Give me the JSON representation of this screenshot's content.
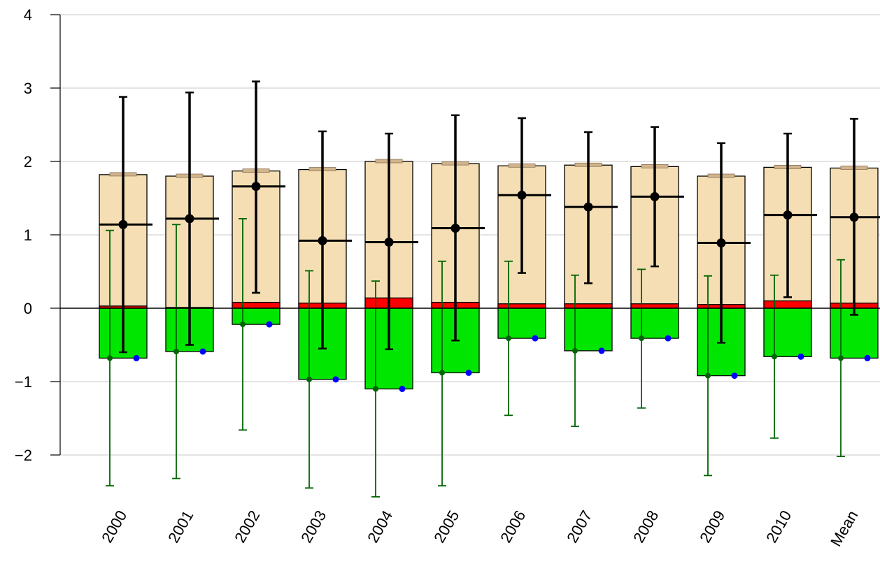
{
  "chart_data": {
    "type": "bar",
    "title": "",
    "xlabel": "",
    "ylabel": "",
    "ylim": [
      -2.75,
      4
    ],
    "grid": true,
    "yticks": [
      -2,
      -1,
      0,
      1,
      2,
      3,
      4
    ],
    "ytick_labels": [
      "−2",
      "−1",
      "0",
      "1",
      "2",
      "3",
      "4"
    ],
    "categories": [
      "2000",
      "2001",
      "2002",
      "2003",
      "2004",
      "2005",
      "2006",
      "2007",
      "2008",
      "2009",
      "2010",
      "Mean"
    ],
    "colors": {
      "positive_bar": "#f5deb3",
      "positive_cap": "#d2b48c",
      "small_bar": "#ff0000",
      "negative_bar": "#00e600",
      "positive_errorbar": "#000000",
      "negative_errorbar": "#006400",
      "point": "#0000ff",
      "grid": "#d3d3d3"
    },
    "series": [
      {
        "values": [
          1.82,
          1.8,
          1.87,
          1.89,
          2.0,
          1.97,
          1.94,
          1.95,
          1.93,
          1.8,
          1.92,
          1.91
        ]
      },
      {
        "values": [
          0.03,
          0.01,
          0.08,
          0.07,
          0.14,
          0.08,
          0.06,
          0.06,
          0.06,
          0.05,
          0.1,
          0.07
        ]
      },
      {
        "values": [
          -0.68,
          -0.59,
          -0.22,
          -0.97,
          -1.1,
          -0.88,
          -0.41,
          -0.58,
          -0.41,
          -0.92,
          -0.66,
          -0.68
        ]
      }
    ],
    "positive_errorbars": {
      "mean": [
        1.14,
        1.22,
        1.66,
        0.92,
        0.9,
        1.09,
        1.54,
        1.38,
        1.52,
        0.89,
        1.27,
        1.24
      ],
      "lower": [
        -0.6,
        -0.5,
        0.21,
        -0.55,
        -0.56,
        -0.44,
        0.48,
        0.34,
        0.57,
        -0.47,
        0.15,
        -0.09
      ],
      "upper": [
        2.88,
        2.94,
        3.09,
        2.41,
        2.38,
        2.63,
        2.59,
        2.4,
        2.47,
        2.25,
        2.38,
        2.58
      ]
    },
    "negative_errorbars": {
      "mean": [
        -0.68,
        -0.59,
        -0.22,
        -0.97,
        -1.1,
        -0.88,
        -0.41,
        -0.58,
        -0.41,
        -0.92,
        -0.66,
        -0.68
      ],
      "lower": [
        -2.42,
        -2.32,
        -1.66,
        -2.45,
        -2.57,
        -2.42,
        -1.46,
        -1.61,
        -1.36,
        -2.28,
        -1.77,
        -2.02
      ],
      "upper": [
        1.06,
        1.14,
        1.22,
        0.51,
        0.37,
        0.64,
        0.64,
        0.45,
        0.53,
        0.44,
        0.45,
        0.66
      ]
    },
    "points": [
      -0.68,
      -0.59,
      -0.22,
      -0.97,
      -1.1,
      -0.88,
      -0.41,
      -0.58,
      -0.41,
      -0.92,
      -0.66,
      -0.68
    ]
  }
}
